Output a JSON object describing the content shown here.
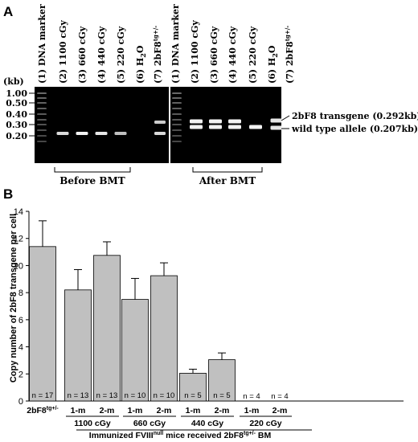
{
  "panel_a": {
    "label": "A",
    "kb_unit": "(kb)",
    "ladder_labels": [
      "1.00",
      "0.50",
      "0.40",
      "0.30",
      "0.20"
    ],
    "ladder_kb": [
      1.0,
      0.5,
      0.4,
      0.3,
      0.2
    ],
    "lanes_left": [
      "(1) DNA marker",
      "(2) 1100 cGy",
      "(3) 660 cGy",
      "(4) 440 cGy",
      "(5) 220 cGy",
      "(6) H",
      "(7) 2bF8"
    ],
    "lanes_right": [
      "(1) DNA marker",
      "(2) 1100 cGy",
      "(3) 660 cGy",
      "(4) 440 cGy",
      "(5) 220 cGy",
      "(6) H",
      "(7) 2bF8"
    ],
    "h2o_sub": "2",
    "h2o_suffix": "O",
    "tg_sup": "tg+/-",
    "annotation_transgene": "2bF8 transgene (0.292kb)",
    "annotation_wildtype": "wild type allele (0.207kb)",
    "group_before": "Before BMT",
    "group_after": "After BMT"
  },
  "panel_b": {
    "label": "B"
  },
  "chart_data": {
    "type": "bar",
    "ylabel": "Copy number of 2bF8 transgene per cell",
    "ylim": [
      0,
      14
    ],
    "yticks": [
      0,
      2,
      4,
      6,
      8,
      10,
      12,
      14
    ],
    "bars": [
      {
        "label": "2bF8",
        "label_sup": "tg+/-",
        "value": 11.4,
        "error": 1.9,
        "n": "n = 17",
        "group": ""
      },
      {
        "label": "1-m",
        "value": 8.2,
        "error": 1.5,
        "n": "n = 13",
        "group": "1100 cGy"
      },
      {
        "label": "2-m",
        "value": 10.75,
        "error": 1.0,
        "n": "n = 13",
        "group": "1100 cGy"
      },
      {
        "label": "1-m",
        "value": 7.5,
        "error": 1.55,
        "n": "n = 10",
        "group": "660 cGy"
      },
      {
        "label": "2-m",
        "value": 9.25,
        "error": 0.95,
        "n": "n = 10",
        "group": "660 cGy"
      },
      {
        "label": "1-m",
        "value": 2.05,
        "error": 0.3,
        "n": "n = 5",
        "group": "440 cGy"
      },
      {
        "label": "2-m",
        "value": 3.05,
        "error": 0.5,
        "n": "n = 5",
        "group": "440 cGy"
      },
      {
        "label": "1-m",
        "value": 0.0,
        "error": 0.0,
        "n": "n = 4",
        "group": "220 cGy"
      },
      {
        "label": "2-m",
        "value": 0.0,
        "error": 0.0,
        "n": "n = 4",
        "group": "220 cGy"
      }
    ],
    "groups": [
      "1100 cGy",
      "660 cGy",
      "440 cGy",
      "220 cGy"
    ],
    "caption_prefix": "Immunized FVIII",
    "caption_sup1": "null",
    "caption_middle": " mice received 2bF8",
    "caption_sup2": "tg+/-",
    "caption_suffix": " BM",
    "bar_color": "#c0c0c0"
  }
}
